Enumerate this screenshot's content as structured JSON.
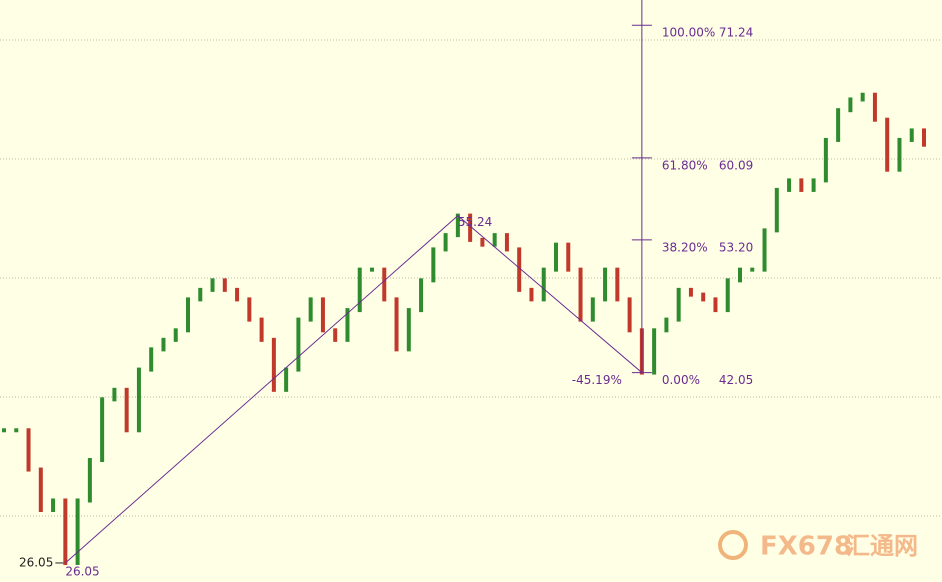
{
  "chart_data": {
    "type": "candlestick",
    "values": [
      37.2,
      37.2,
      33.9,
      30.5,
      31.3,
      26.05,
      31.3,
      34.7,
      39.8,
      40.6,
      37.2,
      42.3,
      44.0,
      44.8,
      45.6,
      48.2,
      49.0,
      49.8,
      49.0,
      48.2,
      46.5,
      44.8,
      40.6,
      42.3,
      46.5,
      48.2,
      45.6,
      44.8,
      47.3,
      50.7,
      50.7,
      48.2,
      44.0,
      47.3,
      49.8,
      52.4,
      53.6,
      55.24,
      53.2,
      52.8,
      53.6,
      52.4,
      49.0,
      48.2,
      50.7,
      52.8,
      50.7,
      46.5,
      48.2,
      50.7,
      48.2,
      45.6,
      42.05,
      45.6,
      46.5,
      49.0,
      48.6,
      48.2,
      47.3,
      49.8,
      50.7,
      50.7,
      54.0,
      57.4,
      58.2,
      57.4,
      58.2,
      61.6,
      64.1,
      65.0,
      65.4,
      63.3,
      59.1,
      61.6,
      62.4,
      61.2
    ],
    "up_color": "#2e8b2e",
    "down_color": "#c0392b",
    "ylim": [
      24.45,
      73.36
    ],
    "grid_lines": [
      30,
      40,
      50,
      60,
      70
    ],
    "grid": true,
    "fib_color": "#6a2c91",
    "swing_low": {
      "value": 26.05,
      "label": "26.05"
    },
    "swing_high": {
      "value": 55.24,
      "label": "55.24"
    },
    "retrace_low": {
      "value": 42.05,
      "label": "42.05"
    },
    "retrace_label": "-45.19%",
    "fib_levels": [
      {
        "percent": {
          "value": 100,
          "label": "100.00%"
        },
        "price": 71.24
      },
      {
        "percent": {
          "value": 61.8,
          "label": "61.80%"
        },
        "price": 60.09
      },
      {
        "percent": {
          "value": 38.2,
          "label": "38.20%"
        },
        "price": {
          "value": 53.2,
          "label": "53.20"
        }
      },
      {
        "percent": {
          "value": 0,
          "label": "0.00%"
        },
        "price": 42.05
      }
    ],
    "watermark": "FX678",
    "watermark_cn": "汇通网"
  }
}
